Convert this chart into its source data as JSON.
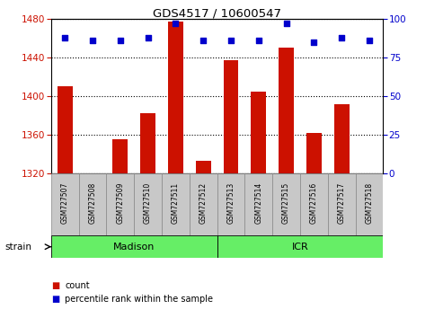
{
  "title": "GDS4517 / 10600547",
  "samples": [
    "GSM727507",
    "GSM727508",
    "GSM727509",
    "GSM727510",
    "GSM727511",
    "GSM727512",
    "GSM727513",
    "GSM727514",
    "GSM727515",
    "GSM727516",
    "GSM727517",
    "GSM727518"
  ],
  "counts": [
    1410,
    1320,
    1355,
    1382,
    1477,
    1333,
    1437,
    1405,
    1450,
    1362,
    1392,
    1320
  ],
  "percentiles": [
    88,
    86,
    86,
    88,
    97,
    86,
    86,
    86,
    97,
    85,
    88,
    86
  ],
  "bar_color": "#cc1100",
  "dot_color": "#0000cc",
  "ylim_left": [
    1320,
    1480
  ],
  "ylim_right": [
    0,
    100
  ],
  "yticks_left": [
    1320,
    1360,
    1400,
    1440,
    1480
  ],
  "yticks_right": [
    0,
    25,
    50,
    75,
    100
  ],
  "xlabel_color": "#cc1100",
  "ylabel_right_color": "#0000cc",
  "madison_samples_count": 6,
  "icr_samples_count": 6,
  "madison_color": "#66ee66",
  "icr_color": "#66ee66",
  "tick_label_area_color": "#c8c8c8",
  "strain_label": "strain",
  "madison_label": "Madison",
  "icr_label": "ICR",
  "legend_count_label": "count",
  "legend_pct_label": "percentile rank within the sample"
}
